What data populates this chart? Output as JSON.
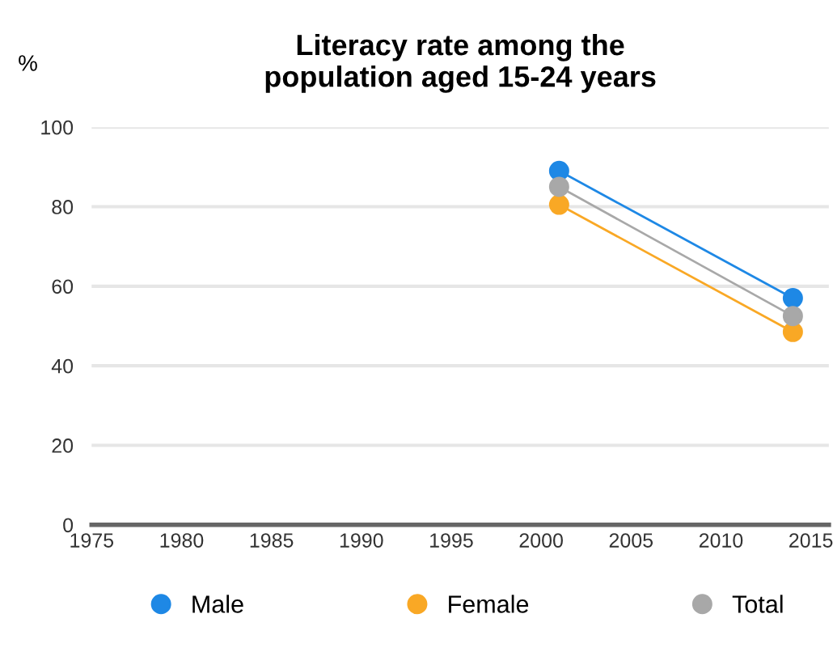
{
  "chart_data": {
    "type": "line",
    "title": "Literacy rate among the\npopulation aged 15-24 years",
    "ylabel": "%",
    "x": [
      2001,
      2014
    ],
    "series": [
      {
        "name": "Male",
        "color": "#1e88e5",
        "values": [
          89,
          57
        ]
      },
      {
        "name": "Female",
        "color": "#f9a825",
        "values": [
          80.5,
          48.5
        ]
      },
      {
        "name": "Total",
        "color": "#a8a8a8",
        "values": [
          85,
          52.5
        ]
      }
    ],
    "xlim": [
      1975,
      2016
    ],
    "xticks": [
      1975,
      1980,
      1985,
      1990,
      1995,
      2000,
      2005,
      2010,
      2015
    ],
    "ylim": [
      0,
      100
    ],
    "yticks": [
      0,
      20,
      40,
      60,
      80,
      100
    ],
    "grid": "y",
    "legend": "bottom",
    "marker": "circle",
    "line_style": "solid"
  }
}
